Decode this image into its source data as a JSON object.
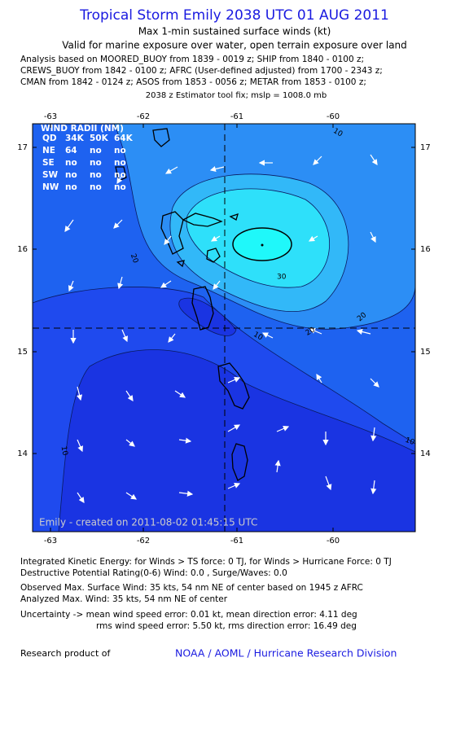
{
  "header": {
    "title": "Tropical Storm Emily 2038 UTC 01 AUG 2011",
    "subtitle": "Max 1-min sustained surface winds (kt)",
    "validity": "Valid for marine exposure over water, open terrain exposure over land",
    "analysis_lines": [
      "Analysis based on MOORED_BUOY from 1839 - 0019 z; SHIP from 1840 - 0100 z;",
      "CREWS_BUOY from 1842 - 0100 z; AFRC (User-defined adjusted) from 1700 - 2343 z;",
      "CMAN from 1842 - 0124 z; ASOS from 1853 - 0056 z; METAR from 1853 - 0100 z;"
    ],
    "estimator": "2038 z Estimator tool fix; mslp = 1008.0 mb"
  },
  "map": {
    "lon_ticks": [
      "-63",
      "-62",
      "-61",
      "-60"
    ],
    "lat_ticks": [
      "17",
      "16",
      "15",
      "14"
    ],
    "wind_radii": {
      "title": "WIND RADII (NM)",
      "header": [
        "QD",
        "34K",
        "50K",
        "64K"
      ],
      "rows": [
        [
          "NE",
          "64",
          "no",
          "no"
        ],
        [
          "SE",
          "no",
          "no",
          "no"
        ],
        [
          "SW",
          "no",
          "no",
          "no"
        ],
        [
          "NW",
          "no",
          "no",
          "no"
        ]
      ]
    },
    "contour_labels": [
      "20",
      "30",
      "20",
      "10",
      "10",
      "20",
      "10",
      "10"
    ],
    "credit": "Emily - created on 2011-08-02 01:45:15 UTC"
  },
  "footer": {
    "lines": [
      "Integrated Kinetic Energy:  for Winds > TS force: 0 TJ,  for Winds > Hurricane Force: 0 TJ",
      "Destructive Potential Rating(0-6)   Wind: 0.0 , Surge/Waves: 0.0",
      "Observed Max. Surface Wind: 35 kts, 54 nm NE of center based on 1945 z AFRC",
      "Analyzed Max. Wind: 35 kts, 54 nm NE of center",
      "Uncertainty -> mean wind speed error: 0.01 kt,   mean direction error: 4.11 deg",
      "rms wind speed error: 5.50 kt,   rms direction error: 16.49 deg"
    ],
    "research_label": "Research product of",
    "org": "NOAA / AOML / Hurricane Research Division"
  }
}
